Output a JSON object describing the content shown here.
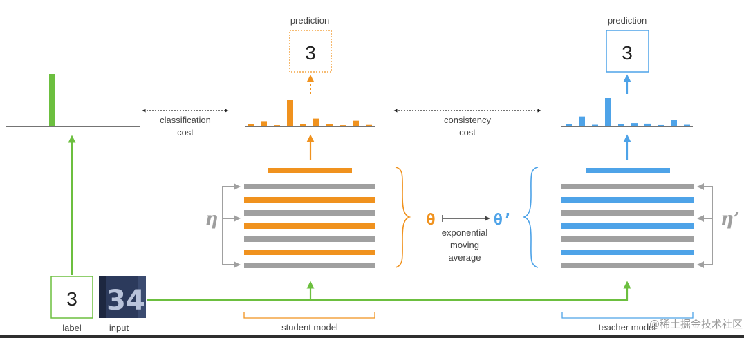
{
  "labels": {
    "prediction_student": "prediction",
    "prediction_teacher": "prediction",
    "prediction_student_value": "3",
    "prediction_teacher_value": "3",
    "classification_cost_line1": "classification",
    "classification_cost_line2": "cost",
    "consistency_cost_line1": "consistency",
    "consistency_cost_line2": "cost",
    "eta": "η",
    "eta_prime": "η’",
    "theta": "θ",
    "theta_prime": "θ’",
    "ema_line1": "exponential",
    "ema_line2": "moving",
    "ema_line3": "average",
    "label_value": "3",
    "label_caption": "label",
    "input_caption": "input",
    "input_digits": "34",
    "student_model": "student model",
    "teacher_model": "teacher model",
    "watermark": "@稀土掘金技术社区"
  },
  "colors": {
    "green": "#6cbf3f",
    "orange": "#f0921e",
    "blue": "#4ea3e8",
    "gray": "#a0a0a0",
    "text": "#444444"
  },
  "student_histogram": [
    0.1,
    0.2,
    0.05,
    1.0,
    0.08,
    0.3,
    0.1,
    0.05,
    0.22,
    0.06
  ],
  "teacher_histogram": [
    0.08,
    0.35,
    0.06,
    1.0,
    0.08,
    0.12,
    0.1,
    0.05,
    0.22,
    0.06
  ],
  "label_histogram": [
    1.0
  ],
  "student_layers": [
    "gray",
    "orange",
    "gray",
    "orange",
    "gray",
    "orange",
    "gray"
  ],
  "teacher_layers": [
    "gray",
    "blue",
    "gray",
    "blue",
    "gray",
    "blue",
    "gray"
  ]
}
